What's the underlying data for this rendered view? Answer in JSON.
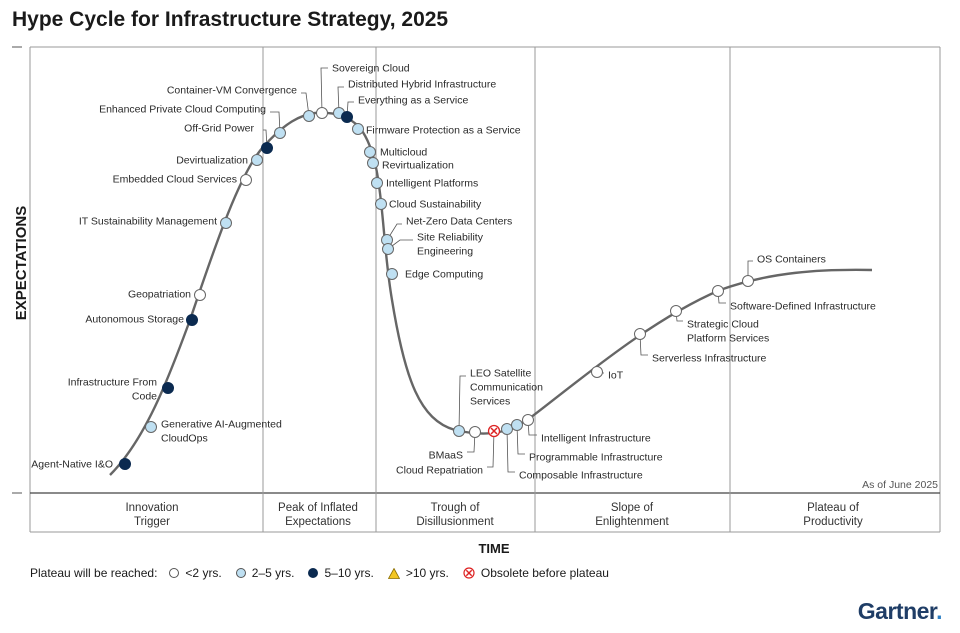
{
  "title": "Hype Cycle for Infrastructure Strategy, 2025",
  "chart_data": {
    "type": "hype-cycle",
    "ylabel": "EXPECTATIONS",
    "xlabel": "TIME",
    "as_of": "As of June 2025",
    "phases": [
      {
        "name": "Innovation\nTrigger"
      },
      {
        "name": "Peak of Inflated\nExpectations"
      },
      {
        "name": "Trough of\nDisillusionment"
      },
      {
        "name": "Slope of\nEnlightenment"
      },
      {
        "name": "Plateau of\nProductivity"
      }
    ],
    "status_colors": {
      "lt2": "#ffffff",
      "2to5": "#bfe0f2",
      "5to10": "#0b2a50",
      "gt10": "#f3c623",
      "obsolete": "#ffffff"
    },
    "technologies": [
      {
        "name": "Agent-Native I&O",
        "phase": "Innovation Trigger",
        "plateau": "5to10"
      },
      {
        "name": "Generative AI-Augmented CloudOps",
        "phase": "Innovation Trigger",
        "plateau": "2to5"
      },
      {
        "name": "Infrastructure From Code",
        "phase": "Innovation Trigger",
        "plateau": "5to10"
      },
      {
        "name": "Autonomous Storage",
        "phase": "Innovation Trigger",
        "plateau": "5to10"
      },
      {
        "name": "Geopatriation",
        "phase": "Innovation Trigger",
        "plateau": "lt2"
      },
      {
        "name": "IT Sustainability Management",
        "phase": "Innovation Trigger",
        "plateau": "2to5"
      },
      {
        "name": "Embedded Cloud Services",
        "phase": "Innovation Trigger",
        "plateau": "lt2"
      },
      {
        "name": "Devirtualization",
        "phase": "Innovation Trigger",
        "plateau": "2to5"
      },
      {
        "name": "Off-Grid Power",
        "phase": "Peak of Inflated Expectations",
        "plateau": "5to10"
      },
      {
        "name": "Enhanced Private Cloud Computing",
        "phase": "Peak of Inflated Expectations",
        "plateau": "2to5"
      },
      {
        "name": "Container-VM Convergence",
        "phase": "Peak of Inflated Expectations",
        "plateau": "2to5"
      },
      {
        "name": "Sovereign Cloud",
        "phase": "Peak of Inflated Expectations",
        "plateau": "lt2"
      },
      {
        "name": "Distributed Hybrid Infrastructure",
        "phase": "Peak of Inflated Expectations",
        "plateau": "2to5"
      },
      {
        "name": "Everything as a Service",
        "phase": "Peak of Inflated Expectations",
        "plateau": "5to10"
      },
      {
        "name": "Firmware Protection as a Service",
        "phase": "Trough of Disillusionment",
        "plateau": "2to5"
      },
      {
        "name": "Multicloud",
        "phase": "Trough of Disillusionment",
        "plateau": "2to5"
      },
      {
        "name": "Revirtualization",
        "phase": "Trough of Disillusionment",
        "plateau": "2to5"
      },
      {
        "name": "Intelligent Platforms",
        "phase": "Trough of Disillusionment",
        "plateau": "2to5"
      },
      {
        "name": "Cloud Sustainability",
        "phase": "Trough of Disillusionment",
        "plateau": "2to5"
      },
      {
        "name": "Net-Zero Data Centers",
        "phase": "Trough of Disillusionment",
        "plateau": "2to5"
      },
      {
        "name": "Site Reliability Engineering",
        "phase": "Trough of Disillusionment",
        "plateau": "2to5"
      },
      {
        "name": "Edge Computing",
        "phase": "Trough of Disillusionment",
        "plateau": "2to5"
      },
      {
        "name": "LEO Satellite Communication Services",
        "phase": "Trough of Disillusionment",
        "plateau": "2to5"
      },
      {
        "name": "BMaaS",
        "phase": "Trough of Disillusionment",
        "plateau": "lt2"
      },
      {
        "name": "Cloud Repatriation",
        "phase": "Trough of Disillusionment",
        "plateau": "obsolete"
      },
      {
        "name": "Composable Infrastructure",
        "phase": "Trough of Disillusionment",
        "plateau": "2to5"
      },
      {
        "name": "Programmable Infrastructure",
        "phase": "Trough of Disillusionment",
        "plateau": "2to5"
      },
      {
        "name": "Intelligent Infrastructure",
        "phase": "Trough of Disillusionment",
        "plateau": "lt2"
      },
      {
        "name": "IoT",
        "phase": "Slope of Enlightenment",
        "plateau": "lt2"
      },
      {
        "name": "Serverless Infrastructure",
        "phase": "Slope of Enlightenment",
        "plateau": "lt2"
      },
      {
        "name": "Strategic Cloud Platform Services",
        "phase": "Slope of Enlightenment",
        "plateau": "lt2"
      },
      {
        "name": "Software-Defined Infrastructure",
        "phase": "Slope of Enlightenment",
        "plateau": "lt2"
      },
      {
        "name": "OS Containers",
        "phase": "Slope of Enlightenment",
        "plateau": "lt2"
      }
    ],
    "legend": {
      "title": "Plateau will be reached:",
      "items": [
        {
          "key": "lt2",
          "label": "<2 yrs."
        },
        {
          "key": "2to5",
          "label": "2–5 yrs."
        },
        {
          "key": "5to10",
          "label": "5–10 yrs."
        },
        {
          "key": "gt10",
          "label": ">10 yrs."
        },
        {
          "key": "obsolete",
          "label": "Obsolete before plateau"
        }
      ]
    }
  },
  "brand": {
    "name": "Gartner",
    "dot": "."
  }
}
